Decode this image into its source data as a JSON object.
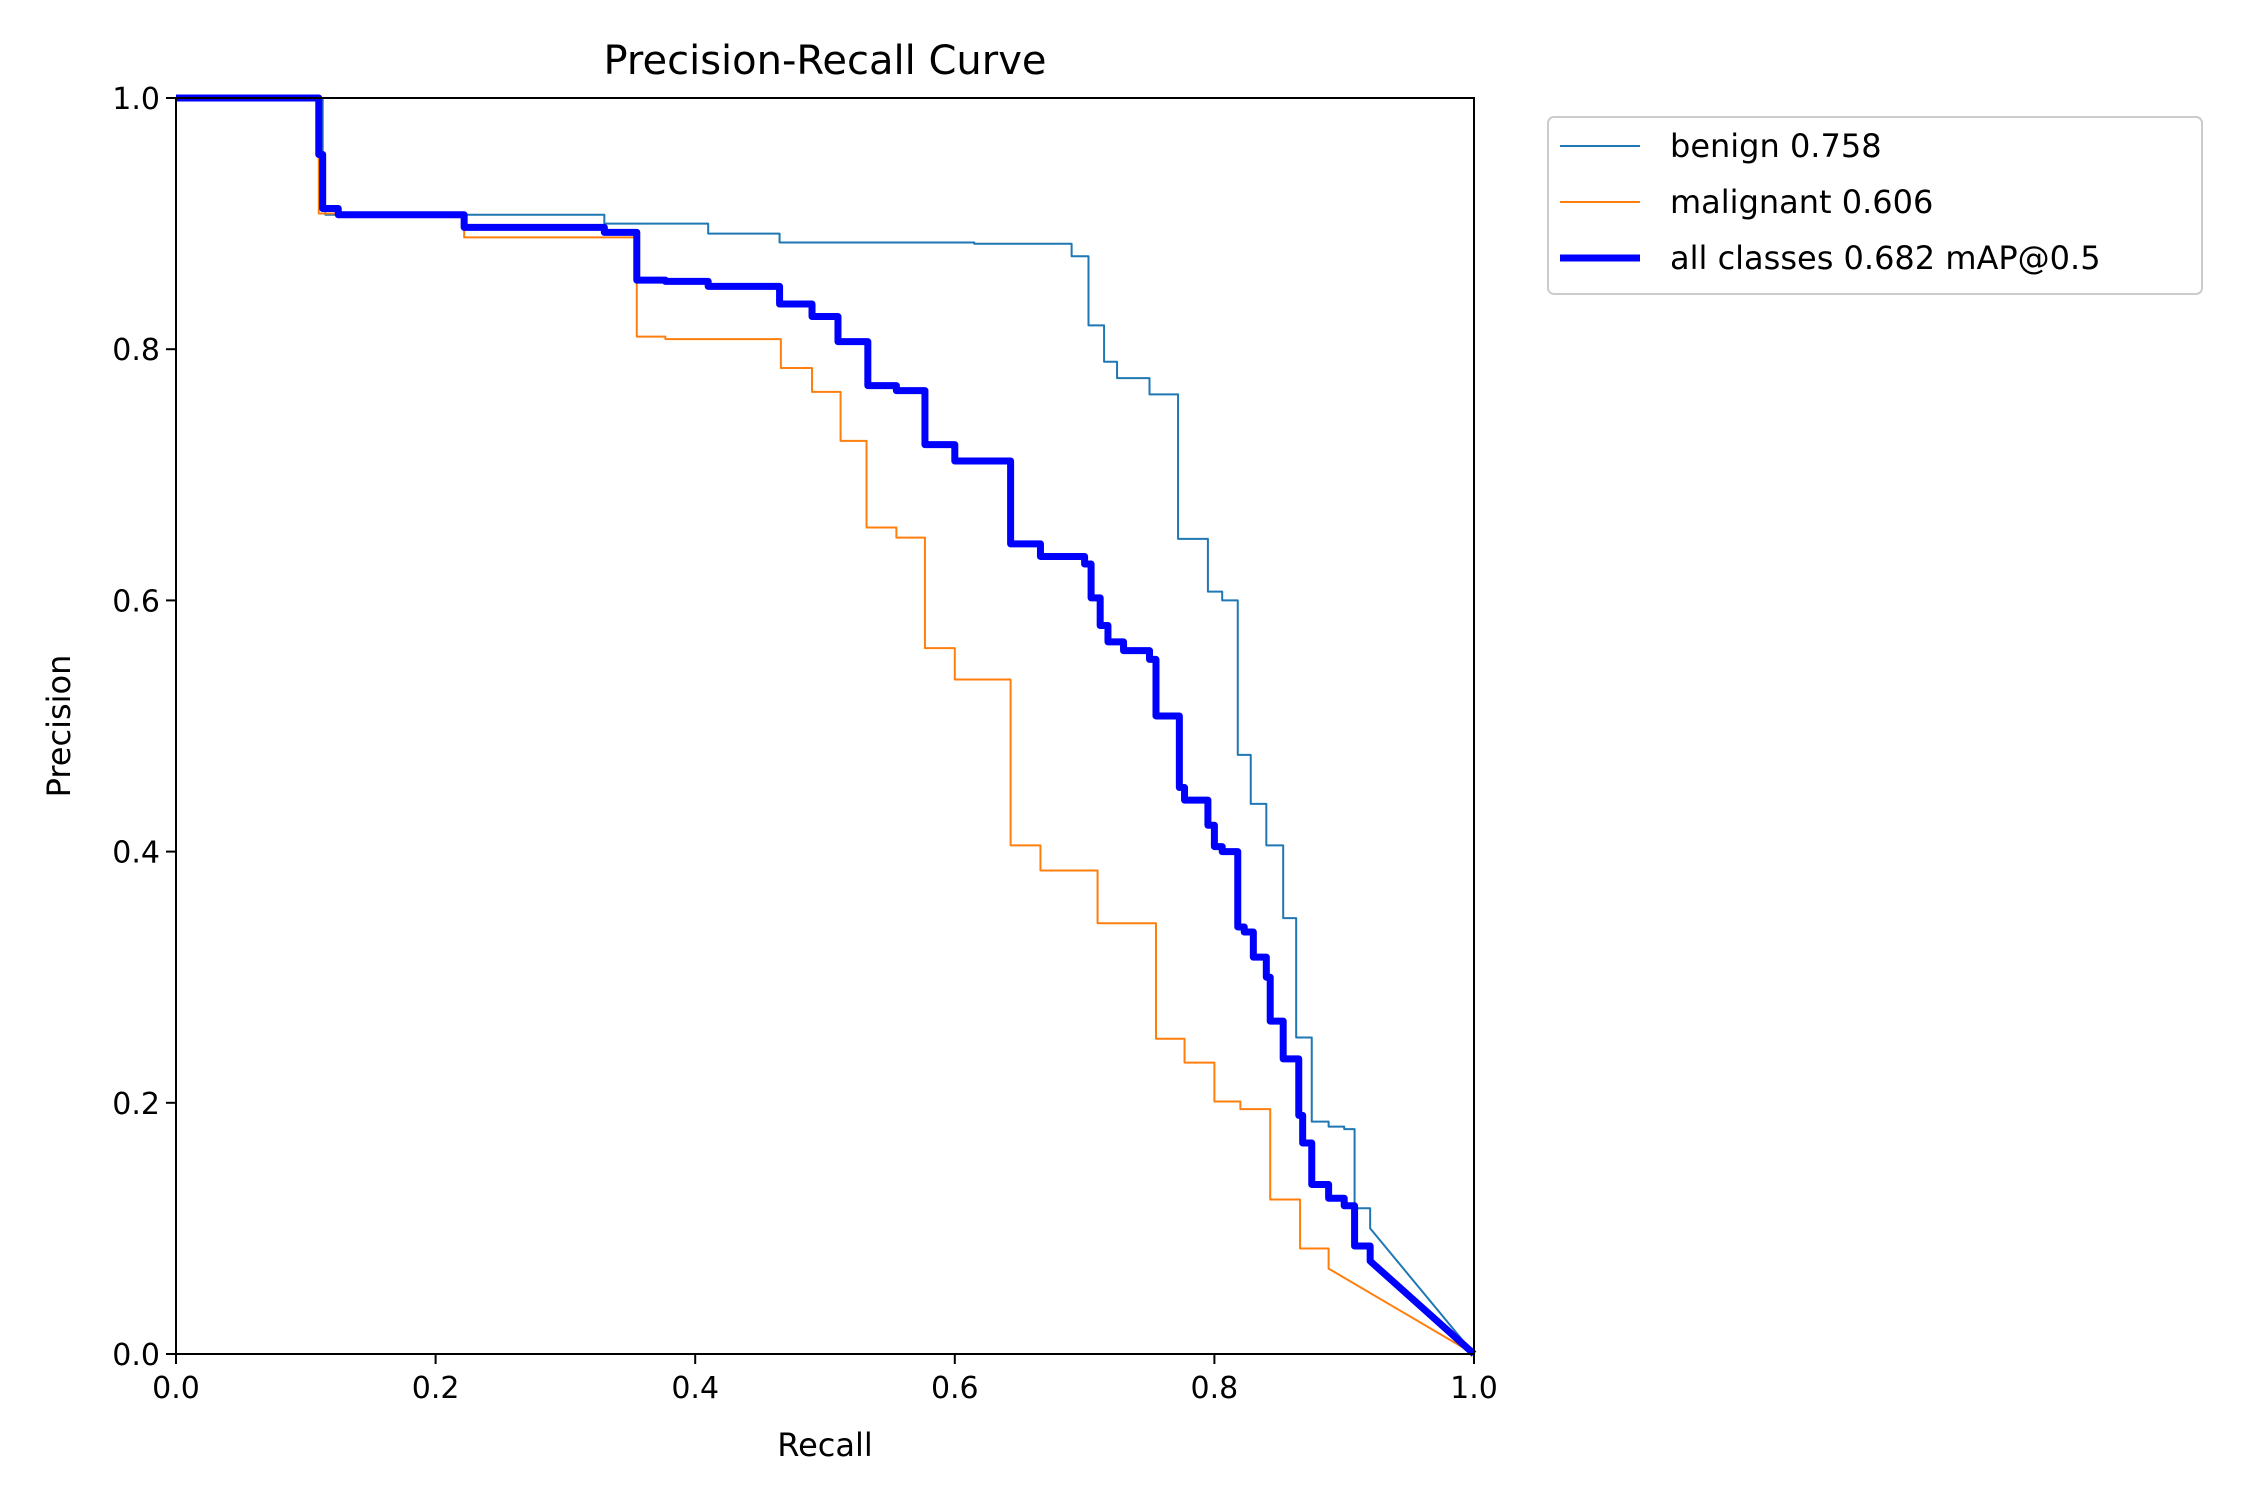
{
  "chart_data": {
    "type": "line",
    "title": "Precision-Recall Curve",
    "xlabel": "Recall",
    "ylabel": "Precision",
    "xlim": [
      0,
      1
    ],
    "ylim": [
      0,
      1
    ],
    "xticks": [
      "0.0",
      "0.2",
      "0.4",
      "0.6",
      "0.8",
      "1.0"
    ],
    "yticks": [
      "0.0",
      "0.2",
      "0.4",
      "0.6",
      "0.8",
      "1.0"
    ],
    "grid": false,
    "legend_placement": "outside-top-right",
    "series": [
      {
        "name": "benign 0.758",
        "color": "#1f77b4",
        "width": "thin",
        "points": [
          [
            0,
            1
          ],
          [
            0.113,
            0.91
          ],
          [
            0.115,
            0.907
          ],
          [
            0.33,
            0.9
          ],
          [
            0.41,
            0.892
          ],
          [
            0.465,
            0.885
          ],
          [
            0.615,
            0.884
          ],
          [
            0.69,
            0.874
          ],
          [
            0.703,
            0.819
          ],
          [
            0.715,
            0.79
          ],
          [
            0.725,
            0.777
          ],
          [
            0.75,
            0.764
          ],
          [
            0.772,
            0.649
          ],
          [
            0.795,
            0.607
          ],
          [
            0.806,
            0.6
          ],
          [
            0.818,
            0.477
          ],
          [
            0.828,
            0.438
          ],
          [
            0.84,
            0.405
          ],
          [
            0.853,
            0.347
          ],
          [
            0.863,
            0.252
          ],
          [
            0.875,
            0.185
          ],
          [
            0.888,
            0.181
          ],
          [
            0.9,
            0.179
          ],
          [
            0.908,
            0.116
          ],
          [
            0.92,
            0.1
          ],
          [
            1,
            0
          ]
        ]
      },
      {
        "name": "malignant 0.606",
        "color": "#ff7f0e",
        "width": "thin",
        "points": [
          [
            0,
            1
          ],
          [
            0.11,
            0.908
          ],
          [
            0.222,
            0.889
          ],
          [
            0.355,
            0.81
          ],
          [
            0.377,
            0.808
          ],
          [
            0.466,
            0.785
          ],
          [
            0.49,
            0.766
          ],
          [
            0.512,
            0.727
          ],
          [
            0.532,
            0.658
          ],
          [
            0.555,
            0.65
          ],
          [
            0.577,
            0.562
          ],
          [
            0.6,
            0.537
          ],
          [
            0.643,
            0.405
          ],
          [
            0.666,
            0.385
          ],
          [
            0.71,
            0.343
          ],
          [
            0.755,
            0.251
          ],
          [
            0.777,
            0.232
          ],
          [
            0.8,
            0.201
          ],
          [
            0.82,
            0.195
          ],
          [
            0.843,
            0.123
          ],
          [
            0.866,
            0.084
          ],
          [
            0.888,
            0.068
          ],
          [
            1,
            0
          ]
        ]
      },
      {
        "name": "all classes 0.682 mAP@0.5",
        "color": "#0000ff",
        "width": "thick",
        "points": [
          [
            0,
            1
          ],
          [
            0.11,
            0.955
          ],
          [
            0.113,
            0.912
          ],
          [
            0.125,
            0.907
          ],
          [
            0.222,
            0.897
          ],
          [
            0.33,
            0.893
          ],
          [
            0.355,
            0.855
          ],
          [
            0.377,
            0.854
          ],
          [
            0.41,
            0.85
          ],
          [
            0.465,
            0.836
          ],
          [
            0.49,
            0.826
          ],
          [
            0.51,
            0.806
          ],
          [
            0.533,
            0.771
          ],
          [
            0.555,
            0.767
          ],
          [
            0.577,
            0.724
          ],
          [
            0.6,
            0.711
          ],
          [
            0.643,
            0.645
          ],
          [
            0.666,
            0.635
          ],
          [
            0.7,
            0.629
          ],
          [
            0.705,
            0.602
          ],
          [
            0.712,
            0.58
          ],
          [
            0.718,
            0.567
          ],
          [
            0.73,
            0.56
          ],
          [
            0.75,
            0.553
          ],
          [
            0.755,
            0.508
          ],
          [
            0.773,
            0.451
          ],
          [
            0.777,
            0.441
          ],
          [
            0.795,
            0.421
          ],
          [
            0.8,
            0.404
          ],
          [
            0.806,
            0.4
          ],
          [
            0.818,
            0.34
          ],
          [
            0.823,
            0.336
          ],
          [
            0.83,
            0.316
          ],
          [
            0.84,
            0.3
          ],
          [
            0.843,
            0.265
          ],
          [
            0.853,
            0.235
          ],
          [
            0.865,
            0.19
          ],
          [
            0.868,
            0.168
          ],
          [
            0.875,
            0.135
          ],
          [
            0.888,
            0.124
          ],
          [
            0.9,
            0.118
          ],
          [
            0.908,
            0.086
          ],
          [
            0.92,
            0.074
          ],
          [
            1,
            0
          ]
        ]
      }
    ]
  }
}
